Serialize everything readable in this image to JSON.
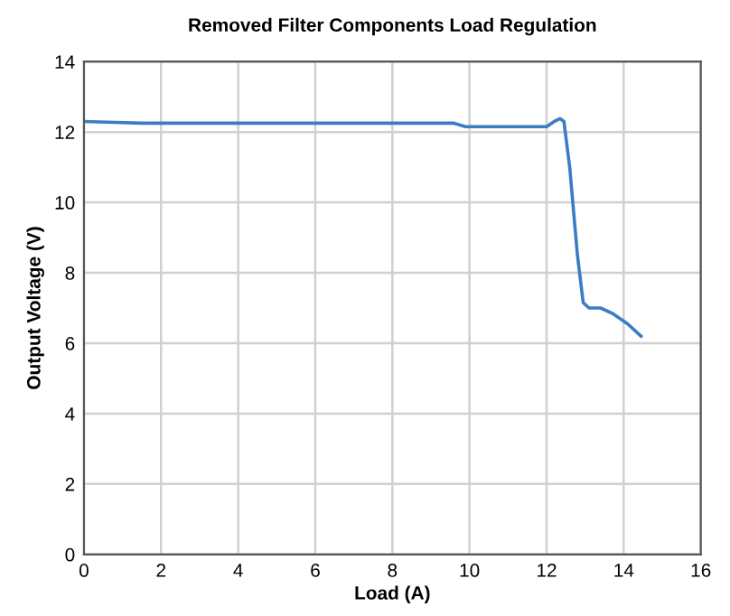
{
  "chart_data": {
    "type": "line",
    "title": "Removed Filter Components Load Regulation",
    "xlabel": "Load (A)",
    "ylabel": "Output Voltage (V)",
    "x": [
      0,
      0.6,
      1.5,
      5,
      9,
      9.6,
      9.9,
      10.5,
      12.0,
      12.2,
      12.35,
      12.45,
      12.6,
      12.8,
      12.95,
      13.1,
      13.4,
      13.7,
      14.1,
      14.45
    ],
    "series": [
      {
        "color": "#3a7dc4",
        "values": [
          12.3,
          12.28,
          12.25,
          12.25,
          12.25,
          12.25,
          12.15,
          12.15,
          12.15,
          12.3,
          12.38,
          12.3,
          11.0,
          8.5,
          7.15,
          7.0,
          7.0,
          6.85,
          6.55,
          6.2
        ]
      }
    ],
    "xlim": [
      0,
      16
    ],
    "xticks": [
      0,
      2,
      4,
      6,
      8,
      10,
      12,
      14,
      16
    ],
    "ylim": [
      0,
      14
    ],
    "yticks": [
      0,
      2,
      4,
      6,
      8,
      10,
      12,
      14
    ],
    "grid": true,
    "marker": "none",
    "line_style": "solid",
    "legend": false
  }
}
